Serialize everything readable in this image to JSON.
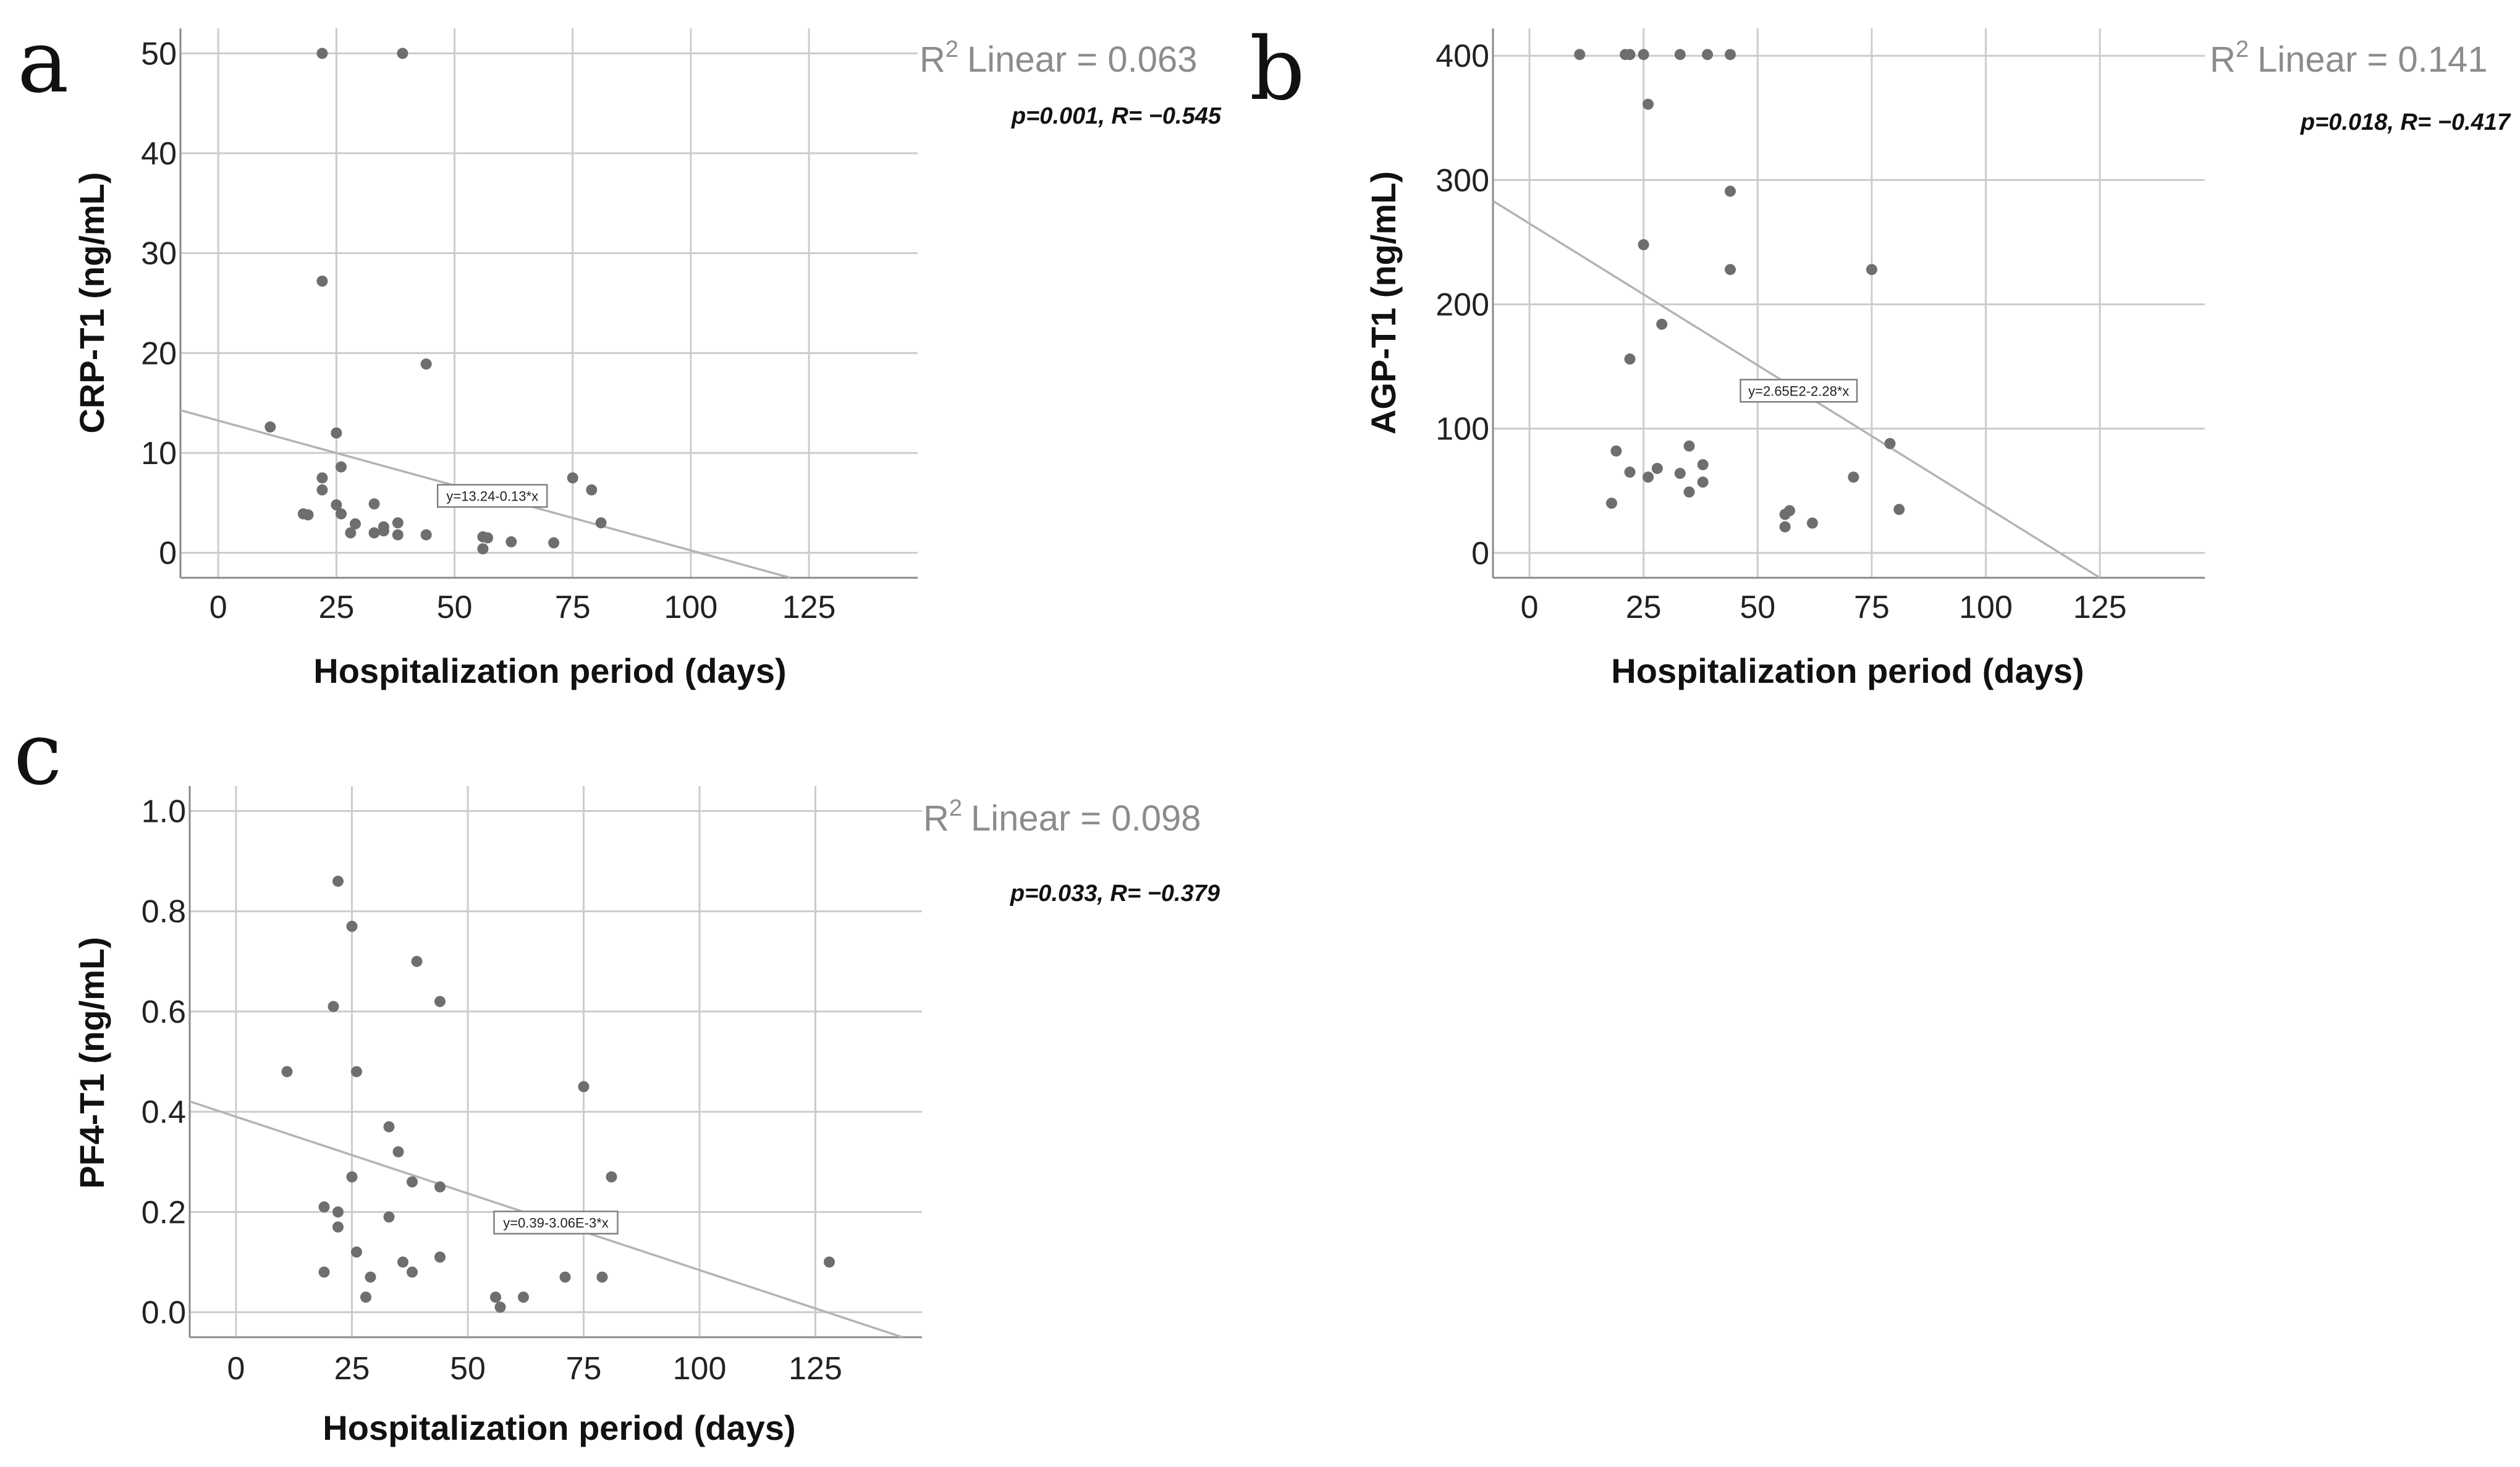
{
  "colors": {
    "points": "#6e6e6e",
    "fit_line": "#b4b4b4",
    "grid": "#cccccc",
    "r2_text": "#8c8c8c"
  },
  "chart_data": [
    {
      "panel": "a",
      "type": "scatter",
      "xlabel": "Hospitalization period (days)",
      "ylabel": "CRP-T1 (ng/mL)",
      "xlim": [
        -8,
        148
      ],
      "ylim": [
        -2.5,
        52.5
      ],
      "xticks": [
        0,
        25,
        50,
        75,
        100,
        125
      ],
      "yticks": [
        0,
        10,
        20,
        30,
        40,
        50
      ],
      "ytick_labels": [
        "0",
        "10",
        "20",
        "30",
        "40",
        "50"
      ],
      "r2_label": "Linear = 0.063",
      "stats": "p=0.001, R= −0.545",
      "fit": {
        "intercept": 13.24,
        "slope": -0.13,
        "equation": "y=13.24-0.13*x",
        "label_x": 58
      },
      "points": [
        [
          11,
          12.6
        ],
        [
          18,
          3.9
        ],
        [
          19,
          3.8
        ],
        [
          22,
          50
        ],
        [
          22,
          27.2
        ],
        [
          22,
          7.5
        ],
        [
          22,
          6.3
        ],
        [
          25,
          12
        ],
        [
          25,
          4.8
        ],
        [
          26,
          8.6
        ],
        [
          26,
          3.9
        ],
        [
          28,
          2
        ],
        [
          29,
          2.9
        ],
        [
          33,
          4.9
        ],
        [
          33,
          2
        ],
        [
          35,
          2.2
        ],
        [
          35,
          2.6
        ],
        [
          38,
          1.8
        ],
        [
          38,
          3
        ],
        [
          39,
          50
        ],
        [
          44,
          18.9
        ],
        [
          44,
          1.8
        ],
        [
          56,
          0.4
        ],
        [
          56,
          1.6
        ],
        [
          57,
          1.5
        ],
        [
          62,
          1.1
        ],
        [
          71,
          1
        ],
        [
          75,
          7.5
        ],
        [
          79,
          6.3
        ],
        [
          81,
          3
        ]
      ]
    },
    {
      "panel": "b",
      "type": "scatter",
      "xlabel": "Hospitalization period (days)",
      "ylabel": "AGP-T1 (ng/mL)",
      "xlim": [
        -8,
        148
      ],
      "ylim": [
        -20,
        422
      ],
      "xticks": [
        0,
        25,
        50,
        75,
        100,
        125
      ],
      "yticks": [
        0,
        100,
        200,
        300,
        400
      ],
      "ytick_labels": [
        "0",
        "100",
        "200",
        "300",
        "400"
      ],
      "r2_label": "Linear = 0.141",
      "stats": "p=0.018, R= −0.417",
      "fit": {
        "intercept": 265,
        "slope": -2.28,
        "equation": "y=2.65E2-2.28*x",
        "label_x": 59
      },
      "points": [
        [
          11,
          401
        ],
        [
          21,
          401
        ],
        [
          22,
          401
        ],
        [
          25,
          401
        ],
        [
          33,
          401
        ],
        [
          39,
          401
        ],
        [
          44,
          401
        ],
        [
          26,
          361
        ],
        [
          44,
          291
        ],
        [
          25,
          248
        ],
        [
          44,
          228
        ],
        [
          75,
          228
        ],
        [
          29,
          184
        ],
        [
          22,
          156
        ],
        [
          35,
          86
        ],
        [
          79,
          88
        ],
        [
          19,
          82
        ],
        [
          22,
          65
        ],
        [
          26,
          61
        ],
        [
          28,
          68
        ],
        [
          33,
          64
        ],
        [
          35,
          49
        ],
        [
          38,
          71
        ],
        [
          38,
          57
        ],
        [
          18,
          40
        ],
        [
          56,
          31
        ],
        [
          57,
          34
        ],
        [
          56,
          21
        ],
        [
          62,
          24
        ],
        [
          71,
          61
        ],
        [
          81,
          35
        ]
      ]
    },
    {
      "panel": "c",
      "type": "scatter",
      "xlabel": "Hospitalization period (days)",
      "ylabel": "PF4-T1 (ng/mL)",
      "xlim": [
        -10,
        148
      ],
      "ylim": [
        -0.05,
        1.05
      ],
      "xticks": [
        0,
        25,
        50,
        75,
        100,
        125
      ],
      "yticks": [
        0.0,
        0.2,
        0.4,
        0.6,
        0.8,
        1.0
      ],
      "ytick_labels": [
        "0.0",
        "0.2",
        "0.4",
        "0.6",
        "0.8",
        "1.0"
      ],
      "r2_label": "Linear = 0.098",
      "stats": "p=0.033, R= −0.379",
      "fit": {
        "intercept": 0.39,
        "slope": -0.00306,
        "equation": "y=0.39-3.06E-3*x",
        "label_x": 69
      },
      "points": [
        [
          11,
          0.48
        ],
        [
          19,
          0.21
        ],
        [
          19,
          0.08
        ],
        [
          21,
          0.61
        ],
        [
          22,
          0.86
        ],
        [
          22,
          0.2
        ],
        [
          22,
          0.17
        ],
        [
          25,
          0.77
        ],
        [
          25,
          0.27
        ],
        [
          26,
          0.48
        ],
        [
          26,
          0.12
        ],
        [
          28,
          0.03
        ],
        [
          29,
          0.07
        ],
        [
          33,
          0.37
        ],
        [
          33,
          0.19
        ],
        [
          35,
          0.32
        ],
        [
          36,
          0.1
        ],
        [
          38,
          0.26
        ],
        [
          38,
          0.08
        ],
        [
          39,
          0.7
        ],
        [
          44,
          0.62
        ],
        [
          44,
          0.25
        ],
        [
          44,
          0.11
        ],
        [
          56,
          0.03
        ],
        [
          57,
          0.01
        ],
        [
          62,
          0.03
        ],
        [
          71,
          0.07
        ],
        [
          75,
          0.45
        ],
        [
          79,
          0.07
        ],
        [
          81,
          0.27
        ],
        [
          128,
          0.1
        ]
      ]
    }
  ]
}
